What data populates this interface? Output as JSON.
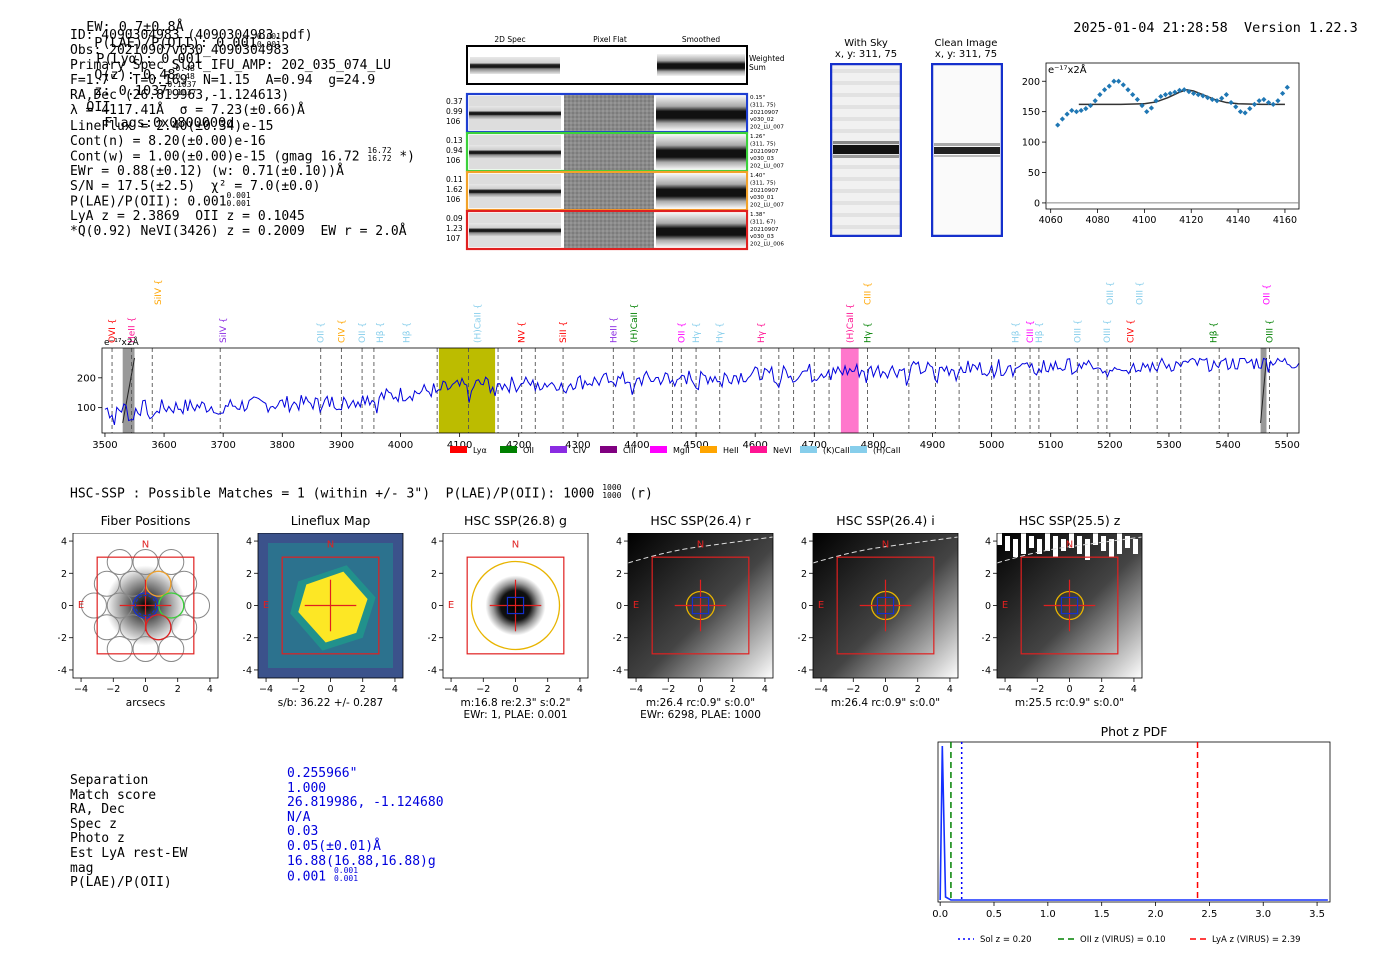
{
  "header": {
    "ew": "EW: 0.7±0.8Å",
    "plae_label": "P(LAE)/P(OII): 0.001",
    "plae_sup": [
      "0.001",
      "0.001"
    ],
    "plya": "P(Lyα): 0.001",
    "qz": "Q(z): 0.48",
    "qz_sup": [
      "0.48",
      "0.48"
    ],
    "z": "z: 0.1037",
    "z_sup": [
      "0.1037",
      "0.1037"
    ],
    "z_line": "OII",
    "flags": "Flags:0x0800000d",
    "datetime": "2025-01-04 21:28:58",
    "version": "Version 1.22.3"
  },
  "info": [
    "ID: 4090304983 (4090304983.pdf)",
    "Obs: 20210907v030_4090304983",
    "Primary Spec_Slot_IFU_AMP: 202_035_074_LU",
    "F=1.7\"  T=0.169  N=1.15  A=0.94  g=24.9",
    "RA,Dec (26.819963,-1.124613)",
    "λ = 4117.41Å  σ = 7.23(±0.66)Å",
    "LineFlux = 2.40(±0.34)e-15",
    "Cont(n) = 8.20(±0.00)e-16",
    "Cont(w) = 1.00(±0.00)e-15 (gmag 16.72",
    "EWr = 0.88(±0.12) (w: 0.71(±0.10))Å",
    "S/N = 17.5(±2.5)  χ² = 7.0(±0.0)",
    "P(LAE)/P(OII): 0.001",
    "LyA z = 2.3869  OII z = 0.1045",
    "*Q(0.92) NeVI(3426) z = 0.2009  EW r = 2.0Å"
  ],
  "info_extra": {
    "gmag_sup": [
      "16.72",
      "16.72"
    ],
    "gmag_tail": " *)",
    "plae_sup": [
      "0.001",
      "0.001"
    ]
  },
  "fiber_panel": {
    "col_headers": [
      "2D Spec",
      "Pixel Flat",
      "Smoothed"
    ],
    "weighted_label": "Weighted Sum",
    "rows": [
      {
        "vals": [
          "0.37",
          "0.99",
          "106"
        ],
        "meta": [
          "0.15\"",
          "(311, 75)",
          "20210907",
          "v030_02",
          "202_LU_007"
        ],
        "color": "#1f3fd1"
      },
      {
        "vals": [
          "0.13",
          "0.94",
          "106"
        ],
        "meta": [
          "1.26\"",
          "(311, 75)",
          "20210907",
          "v030_03",
          "202_LU_007"
        ],
        "color": "#3bd13b"
      },
      {
        "vals": [
          "0.11",
          "1.62",
          "106"
        ],
        "meta": [
          "1.40\"",
          "(311, 75)",
          "20210907",
          "v030_01",
          "202_LU_007"
        ],
        "color": "#f2a22a"
      },
      {
        "vals": [
          "0.09",
          "1.23",
          "107"
        ],
        "meta": [
          "1.38\"",
          "(311, 67)",
          "20210907",
          "v030_03",
          "202_LU_006"
        ],
        "color": "#e02020"
      }
    ]
  },
  "with_sky": {
    "title": "With Sky",
    "subtitle": "x, y: 311, 75"
  },
  "clean_image": {
    "title": "Clean Image",
    "subtitle": "x, y: 311, 75"
  },
  "line_fit": {
    "ylabel": "e⁻¹⁷x2Å"
  },
  "spectrum": {
    "ylabel": "e⁻¹⁷x2Å"
  },
  "legend_items": [
    {
      "label": "Lyα",
      "color": "#ff0000"
    },
    {
      "label": "OII",
      "color": "#008000"
    },
    {
      "label": "CIV",
      "color": "#8a2be2"
    },
    {
      "label": "CIII",
      "color": "#800080"
    },
    {
      "label": "MgII",
      "color": "#ff00ff"
    },
    {
      "label": "HeII",
      "color": "#ffa500"
    },
    {
      "label": "NeVI",
      "color": "#ff1493"
    },
    {
      "label": "(K)CaII",
      "color": "#87ceeb"
    },
    {
      "label": "(H)CaII",
      "color": "#87ceeb"
    }
  ],
  "line_markers": [
    {
      "label": "SiIV",
      "x": 3590,
      "color": "#ffa500",
      "row": 0
    },
    {
      "label": "OVI",
      "x": 3512,
      "color": "#ff0000",
      "row": 1
    },
    {
      "label": "HeII",
      "x": 3545,
      "color": "#ff1493",
      "row": 1
    },
    {
      "label": "SiIV",
      "x": 3700,
      "color": "#8a2be2",
      "row": 1
    },
    {
      "label": "OII",
      "x": 3865,
      "color": "#87ceeb",
      "row": 1
    },
    {
      "label": "CIV",
      "x": 3900,
      "color": "#ffa500",
      "row": 1
    },
    {
      "label": "OII",
      "x": 3935,
      "color": "#87ceeb",
      "row": 1
    },
    {
      "label": "Hβ",
      "x": 3965,
      "color": "#87ceeb",
      "row": 1
    },
    {
      "label": "Hβ",
      "x": 4010,
      "color": "#87ceeb",
      "row": 1
    },
    {
      "label": "(H)CaII",
      "x": 4130,
      "color": "#87ceeb",
      "row": 1
    },
    {
      "label": "NV",
      "x": 4205,
      "color": "#ff0000",
      "row": 1
    },
    {
      "label": "SiII",
      "x": 4275,
      "color": "#ff0000",
      "row": 1
    },
    {
      "label": "HeII",
      "x": 4360,
      "color": "#8a2be2",
      "row": 1
    },
    {
      "label": "(H)CaII",
      "x": 4395,
      "color": "#008000",
      "row": 1
    },
    {
      "label": "OII",
      "x": 4475,
      "color": "#ff00ff",
      "row": 1
    },
    {
      "label": "Hγ",
      "x": 4500,
      "color": "#87ceeb",
      "row": 1
    },
    {
      "label": "Hγ",
      "x": 4540,
      "color": "#87ceeb",
      "row": 1
    },
    {
      "label": "Hγ",
      "x": 4610,
      "color": "#ff1493",
      "row": 1
    },
    {
      "label": "(H)CaII",
      "x": 4760,
      "color": "#ff1493",
      "row": 1
    },
    {
      "label": "CIII",
      "x": 4790,
      "color": "#ffa500",
      "row": 0
    },
    {
      "label": "Hγ",
      "x": 4790,
      "color": "#008000",
      "row": 1
    },
    {
      "label": "Hβ",
      "x": 5040,
      "color": "#87ceeb",
      "row": 1
    },
    {
      "label": "CIII",
      "x": 5065,
      "color": "#ff00ff",
      "row": 1
    },
    {
      "label": "Hβ",
      "x": 5080,
      "color": "#87ceeb",
      "row": 1
    },
    {
      "label": "OIII",
      "x": 5145,
      "color": "#87ceeb",
      "row": 1
    },
    {
      "label": "OIII",
      "x": 5200,
      "color": "#87ceeb",
      "row": 0
    },
    {
      "label": "OIII",
      "x": 5195,
      "color": "#87ceeb",
      "row": 1
    },
    {
      "label": "OIII",
      "x": 5250,
      "color": "#87ceeb",
      "row": 0
    },
    {
      "label": "CIV",
      "x": 5235,
      "color": "#ff0000",
      "row": 1
    },
    {
      "label": "Hβ",
      "x": 5375,
      "color": "#008000",
      "row": 1
    },
    {
      "label": "OII",
      "x": 5465,
      "color": "#ff00ff",
      "row": 0
    },
    {
      "label": "OIII",
      "x": 5470,
      "color": "#008000",
      "row": 1
    }
  ],
  "hsc_header": "HSC-SSP : Possible Matches = 1 (within +/- 3\")  P(LAE)/P(OII): 1000",
  "hsc_header_sup": [
    "1000",
    "1000"
  ],
  "hsc_header_tail": "(r)",
  "cutouts": [
    {
      "title": "Fiber Positions",
      "captions": [
        "arcsecs"
      ]
    },
    {
      "title": "Lineflux Map",
      "captions": [
        "s/b: 36.22 +/- 0.287"
      ]
    },
    {
      "title": "HSC SSP(26.8) g",
      "captions": [
        "m:16.8  re:2.3\"  s:0.2\"",
        "EWr: 1, PLAE: 0.001"
      ]
    },
    {
      "title": "HSC SSP(26.4) r",
      "captions": [
        "m:26.4 rc:0.9\"  s:0.0\"",
        "EWr: 6298, PLAE: 1000"
      ]
    },
    {
      "title": "HSC SSP(26.4) i",
      "captions": [
        "m:26.4 rc:0.9\"  s:0.0\""
      ]
    },
    {
      "title": "HSC SSP(25.5) z",
      "captions": [
        "m:25.5 rc:0.9\"  s:0.0\""
      ]
    }
  ],
  "compass": {
    "n": "N",
    "e": "E"
  },
  "match_table": {
    "labels": [
      "Separation",
      "Match score",
      "RA, Dec",
      "Spec z",
      "Photo z",
      "Est LyA rest-EW",
      "mag",
      "P(LAE)/P(OII)"
    ],
    "values": [
      "0.255966\"",
      "1.000",
      "26.819986, -1.124680",
      "N/A",
      "0.03",
      "0.05(±0.01)Å",
      "16.88(16.88,16.88)g",
      "0.001"
    ],
    "plae_sup": [
      "0.001",
      "0.001"
    ]
  },
  "photz": {
    "title": "Phot z PDF",
    "legend": [
      {
        "label": "Sol z = 0.20",
        "color": "#0000ff",
        "dash": "2,3"
      },
      {
        "label": "OII z (VIRUS) = 0.10",
        "color": "#008000",
        "dash": "6,4"
      },
      {
        "label": "LyA z (VIRUS) = 2.39",
        "color": "#ff0000",
        "dash": "6,4"
      }
    ],
    "xticks": [
      "0.0",
      "0.5",
      "1.0",
      "1.5",
      "2.0",
      "2.5",
      "3.0",
      "3.5"
    ]
  },
  "chart_data": [
    {
      "type": "scatter",
      "name": "line-fit",
      "ylabel": "e⁻¹⁷x2Å",
      "xlim": [
        4058,
        4166
      ],
      "ylim": [
        -10,
        230
      ],
      "xticks": [
        4060,
        4080,
        4100,
        4120,
        4140,
        4160
      ],
      "yticks": [
        0,
        50,
        100,
        150,
        200
      ],
      "points_x": [
        4063,
        4065,
        4067,
        4069,
        4071,
        4073,
        4075,
        4077,
        4079,
        4081,
        4083,
        4085,
        4087,
        4089,
        4091,
        4093,
        4095,
        4097,
        4099,
        4101,
        4103,
        4105,
        4107,
        4109,
        4111,
        4113,
        4115,
        4117,
        4119,
        4121,
        4123,
        4125,
        4127,
        4129,
        4131,
        4133,
        4135,
        4137,
        4139,
        4141,
        4143,
        4145,
        4147,
        4149,
        4151,
        4153,
        4155,
        4157,
        4159,
        4161
      ],
      "points_y": [
        128,
        138,
        146,
        152,
        150,
        152,
        155,
        160,
        168,
        178,
        186,
        192,
        200,
        200,
        194,
        186,
        178,
        170,
        160,
        150,
        156,
        168,
        175,
        178,
        180,
        182,
        185,
        186,
        183,
        180,
        178,
        176,
        173,
        170,
        168,
        172,
        178,
        165,
        158,
        150,
        148,
        155,
        162,
        168,
        170,
        165,
        162,
        168,
        180,
        190
      ],
      "fit_x": [
        4072,
        4080,
        4090,
        4100,
        4105,
        4110,
        4115,
        4118,
        4121,
        4125,
        4130,
        4135,
        4140,
        4150,
        4160
      ],
      "fit_y": [
        162,
        162,
        162,
        163,
        166,
        173,
        182,
        186,
        184,
        178,
        170,
        165,
        163,
        162,
        162
      ]
    },
    {
      "type": "line",
      "name": "spectrum",
      "ylabel": "e⁻¹⁷x2Å",
      "xlim": [
        3495,
        5520
      ],
      "ylim": [
        15,
        300
      ],
      "xticks": [
        3500,
        3600,
        3700,
        3800,
        3900,
        4000,
        4100,
        4200,
        4300,
        4400,
        4500,
        4600,
        4700,
        4800,
        4900,
        5000,
        5100,
        5200,
        5300,
        5400,
        5500
      ],
      "yticks": [
        100,
        200
      ],
      "highlights": [
        {
          "x0": 4065,
          "x1": 4160,
          "color": "#bcbc00"
        },
        {
          "x0": 4745,
          "x1": 4775,
          "color": "#ff77cc"
        }
      ],
      "grey_bands": [
        {
          "x0": 3530,
          "x1": 3550
        },
        {
          "x0": 5455,
          "x1": 5465
        }
      ],
      "dashed_lines": [
        3512,
        3545,
        3580,
        3695,
        3865,
        3900,
        3935,
        3955,
        4062,
        4115,
        4165,
        4205,
        4228,
        4275,
        4360,
        4395,
        4460,
        4475,
        4500,
        4540,
        4610,
        4640,
        4665,
        4700,
        4725,
        4790,
        4860,
        4905,
        4945,
        5000,
        5040,
        5065,
        5080,
        5145,
        5180,
        5195,
        5235,
        5280,
        5320,
        5385,
        5470
      ]
    },
    {
      "type": "line",
      "name": "phot-z-pdf",
      "title": "Phot z PDF",
      "xlim": [
        -0.02,
        3.62
      ],
      "xticks": [
        0.0,
        0.5,
        1.0,
        1.5,
        2.0,
        2.5,
        3.0,
        3.5
      ],
      "vlines": [
        {
          "x": 0.2,
          "color": "#0000ff"
        },
        {
          "x": 0.1,
          "color": "#008000"
        },
        {
          "x": 2.39,
          "color": "#ff0000"
        }
      ]
    }
  ]
}
